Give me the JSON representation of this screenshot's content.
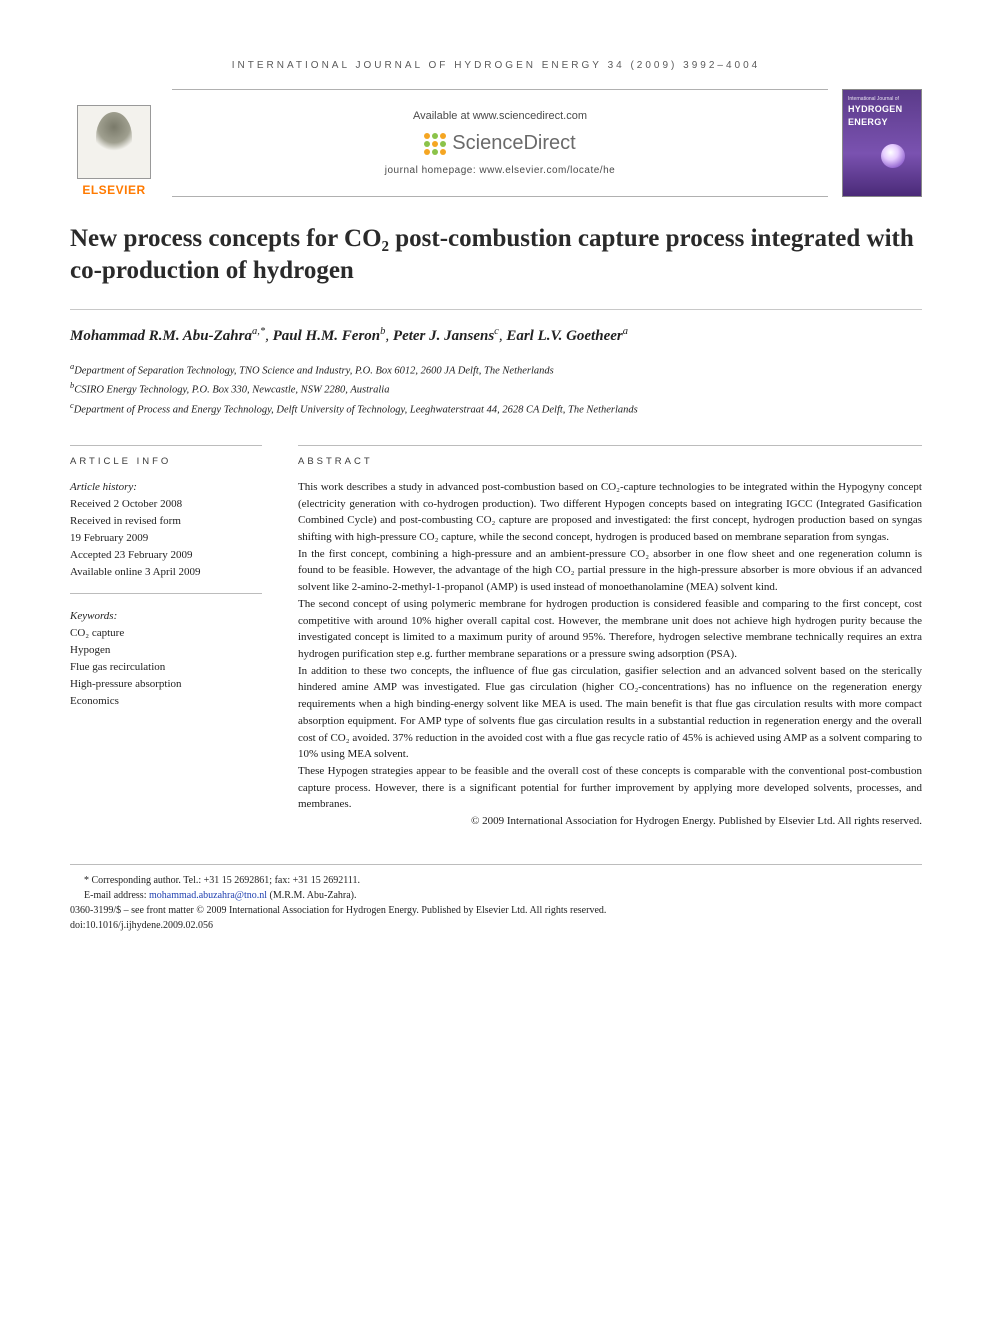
{
  "runningHead": "INTERNATIONAL JOURNAL OF HYDROGEN ENERGY 34 (2009) 3992–4004",
  "masthead": {
    "publisher": "ELSEVIER",
    "availableAt": "Available at www.sciencedirect.com",
    "platform": "ScienceDirect",
    "homepage": "journal homepage: www.elsevier.com/locate/he",
    "sdDotColors": [
      "#f5a623",
      "#8bc34a",
      "#f5a623",
      "#8bc34a",
      "#f5a623",
      "#8bc34a",
      "#f5a623",
      "#8bc34a",
      "#f5a623"
    ],
    "cover": {
      "topLine": "International Journal of",
      "titleLines": [
        "HYDROGEN",
        "ENERGY"
      ]
    }
  },
  "title": "New process concepts for CO₂ post-combustion capture process integrated with co-production of hydrogen",
  "authors": [
    {
      "name": "Mohammad R.M. Abu-Zahra",
      "marks": "a,*"
    },
    {
      "name": "Paul H.M. Feron",
      "marks": "b"
    },
    {
      "name": "Peter J. Jansens",
      "marks": "c"
    },
    {
      "name": "Earl L.V. Goetheer",
      "marks": "a"
    }
  ],
  "affiliations": [
    {
      "key": "a",
      "text": "Department of Separation Technology, TNO Science and Industry, P.O. Box 6012, 2600 JA Delft, The Netherlands"
    },
    {
      "key": "b",
      "text": "CSIRO Energy Technology, P.O. Box 330, Newcastle, NSW 2280, Australia"
    },
    {
      "key": "c",
      "text": "Department of Process and Energy Technology, Delft University of Technology, Leeghwaterstraat 44, 2628 CA Delft, The Netherlands"
    }
  ],
  "articleInfo": {
    "heading": "ARTICLE INFO",
    "historyLabel": "Article history:",
    "history": [
      "Received 2 October 2008",
      "Received in revised form",
      "19 February 2009",
      "Accepted 23 February 2009",
      "Available online 3 April 2009"
    ],
    "keywordsLabel": "Keywords:",
    "keywords": [
      "CO₂ capture",
      "Hypogen",
      "Flue gas recirculation",
      "High-pressure absorption",
      "Economics"
    ]
  },
  "abstract": {
    "heading": "ABSTRACT",
    "paragraphs": [
      "This work describes a study in advanced post-combustion based on CO₂-capture technologies to be integrated within the Hypogyny concept (electricity generation with co-hydrogen production). Two different Hypogen concepts based on integrating IGCC (Integrated Gasification Combined Cycle) and post-combusting CO₂ capture are proposed and investigated: the first concept, hydrogen production based on syngas shifting with high-pressure CO₂ capture, while the second concept, hydrogen is produced based on membrane separation from syngas.",
      "In the first concept, combining a high-pressure and an ambient-pressure CO₂ absorber in one flow sheet and one regeneration column is found to be feasible. However, the advantage of the high CO₂ partial pressure in the high-pressure absorber is more obvious if an advanced solvent like 2-amino-2-methyl-1-propanol (AMP) is used instead of monoethanolamine (MEA) solvent kind.",
      "The second concept of using polymeric membrane for hydrogen production is considered feasible and comparing to the first concept, cost competitive with around 10% higher overall capital cost. However, the membrane unit does not achieve high hydrogen purity because the investigated concept is limited to a maximum purity of around 95%. Therefore, hydrogen selective membrane technically requires an extra hydrogen purification step e.g. further membrane separations or a pressure swing adsorption (PSA).",
      "In addition to these two concepts, the influence of flue gas circulation, gasifier selection and an advanced solvent based on the sterically hindered amine AMP was investigated. Flue gas circulation (higher CO₂-concentrations) has no influence on the regeneration energy requirements when a high binding-energy solvent like MEA is used. The main benefit is that flue gas circulation results with more compact absorption equipment. For AMP type of solvents flue gas circulation results in a substantial reduction in regeneration energy and the overall cost of CO₂ avoided. 37% reduction in the avoided cost with a flue gas recycle ratio of 45% is achieved using AMP as a solvent comparing to 10% using MEA solvent.",
      "These Hypogen strategies appear to be feasible and the overall cost of these concepts is comparable with the conventional post-combustion capture process. However, there is a significant potential for further improvement by applying more developed solvents, processes, and membranes."
    ],
    "copyright": "© 2009 International Association for Hydrogen Energy. Published by Elsevier Ltd. All rights reserved."
  },
  "footnotes": {
    "corresponding": "* Corresponding author. Tel.: +31 15 2692861; fax: +31 15 2692111.",
    "emailLabel": "E-mail address:",
    "email": "mohammad.abuzahra@tno.nl",
    "emailAttribution": "(M.R.M. Abu-Zahra).",
    "issn": "0360-3199/$ – see front matter © 2009 International Association for Hydrogen Energy. Published by Elsevier Ltd. All rights reserved.",
    "doi": "doi:10.1016/j.ijhydene.2009.02.056"
  },
  "colors": {
    "elsevierOrange": "#ff7a00",
    "linkBlue": "#2040b0",
    "ruleGrey": "#bcbcbc",
    "coverPurpleTop": "#5b3b8a",
    "coverPurpleBottom": "#4a2a78"
  }
}
